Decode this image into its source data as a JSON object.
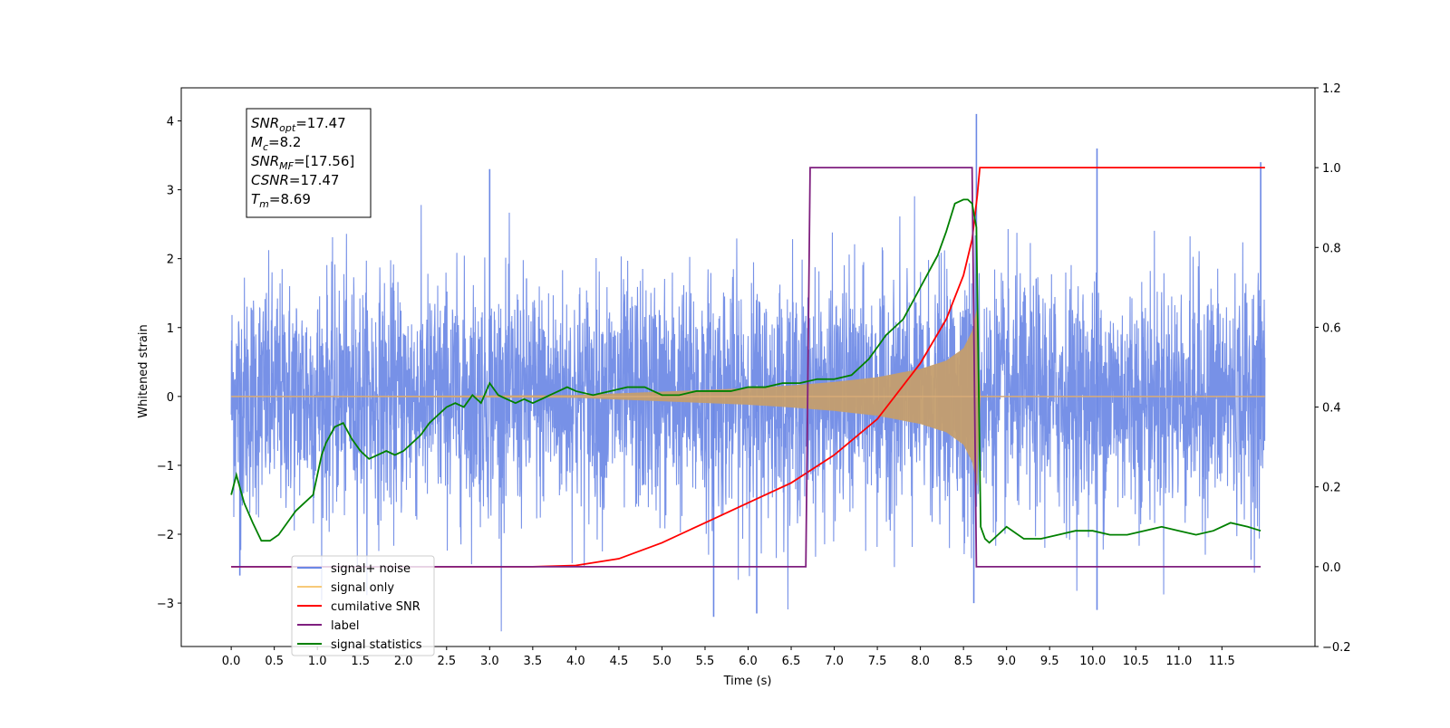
{
  "chart_data": {
    "type": "line",
    "title": "",
    "xlabel": "Time (s)",
    "ylabel_left": "Whitened strain",
    "ylabel_right": "",
    "xlim": [
      -0.58,
      12.58
    ],
    "ylim_left": [
      -3.63,
      4.48
    ],
    "ylim_right": [
      -0.2,
      1.2
    ],
    "x_ticks": [
      0.0,
      0.5,
      1.0,
      1.5,
      2.0,
      2.5,
      3.0,
      3.5,
      4.0,
      4.5,
      5.0,
      5.5,
      6.0,
      6.5,
      7.0,
      7.5,
      8.0,
      8.5,
      9.0,
      9.5,
      10.0,
      10.5,
      11.0,
      11.5
    ],
    "x_tick_labels": [
      "0.0",
      "0.5",
      "1.0",
      "1.5",
      "2.0",
      "2.5",
      "3.0",
      "3.5",
      "4.0",
      "4.5",
      "5.0",
      "5.5",
      "6.0",
      "6.5",
      "7.0",
      "7.5",
      "8.0",
      "8.5",
      "9.0",
      "9.5",
      "10.0",
      "10.5",
      "11.0",
      "11.5"
    ],
    "y_left_ticks": [
      -3,
      -2,
      -1,
      0,
      1,
      2,
      3,
      4
    ],
    "y_left_tick_labels": [
      "−3",
      "−2",
      "−1",
      "0",
      "1",
      "2",
      "3",
      "4"
    ],
    "y_right_ticks": [
      -0.2,
      0.0,
      0.2,
      0.4,
      0.6,
      0.8,
      1.0,
      1.2
    ],
    "y_right_tick_labels": [
      "−0.2",
      "0.0",
      "0.2",
      "0.4",
      "0.6",
      "0.8",
      "1.0",
      "1.2"
    ],
    "grid": false,
    "legend_position": "lower-left",
    "series": [
      {
        "name": "signal+ noise",
        "axis": "left",
        "color": "#6b88e5",
        "description_type": "noise",
        "t_start": 0.0,
        "t_end": 12.0,
        "std": 0.85,
        "peaks": [
          [
            0.1,
            -2.6
          ],
          [
            3.0,
            3.3
          ],
          [
            5.6,
            -3.2
          ],
          [
            6.1,
            -3.15
          ],
          [
            8.65,
            4.1
          ],
          [
            8.62,
            -3.0
          ],
          [
            10.05,
            3.6
          ],
          [
            10.05,
            -3.1
          ],
          [
            11.95,
            3.4
          ]
        ]
      },
      {
        "name": "signal only",
        "axis": "left",
        "color": "#c49e6e",
        "description_type": "chirp",
        "t_start": 0.0,
        "t_end": 12.0,
        "t_merge": 8.66,
        "envelope": [
          [
            0.0,
            0.0
          ],
          [
            4.0,
            0.02
          ],
          [
            5.0,
            0.07
          ],
          [
            6.0,
            0.12
          ],
          [
            6.5,
            0.16
          ],
          [
            7.0,
            0.21
          ],
          [
            7.5,
            0.28
          ],
          [
            8.0,
            0.4
          ],
          [
            8.3,
            0.52
          ],
          [
            8.5,
            0.7
          ],
          [
            8.6,
            0.95
          ],
          [
            8.66,
            1.3
          ],
          [
            8.69,
            0.0
          ],
          [
            12.0,
            0.0
          ]
        ]
      },
      {
        "name": "cumilative SNR",
        "axis": "right",
        "color": "#ff0000",
        "x": [
          0.0,
          3.5,
          4.0,
          4.5,
          5.0,
          5.5,
          6.0,
          6.5,
          7.0,
          7.5,
          8.0,
          8.3,
          8.5,
          8.6,
          8.66,
          8.69,
          12.0
        ],
        "y": [
          0.0,
          0.0,
          0.003,
          0.02,
          0.06,
          0.11,
          0.16,
          0.21,
          0.28,
          0.37,
          0.51,
          0.62,
          0.73,
          0.82,
          0.93,
          1.0,
          1.0
        ]
      },
      {
        "name": "label",
        "axis": "right",
        "color": "#7f1f7f",
        "x": [
          0.0,
          6.67,
          6.72,
          8.6,
          8.65,
          11.95
        ],
        "y": [
          0.0,
          0.0,
          1.0,
          1.0,
          0.0,
          0.0
        ]
      },
      {
        "name": "signal statistics",
        "axis": "right",
        "color": "#008000",
        "x": [
          0.0,
          0.06,
          0.15,
          0.25,
          0.35,
          0.45,
          0.55,
          0.65,
          0.75,
          0.85,
          0.95,
          1.05,
          1.1,
          1.2,
          1.3,
          1.4,
          1.5,
          1.6,
          1.7,
          1.8,
          1.9,
          2.0,
          2.1,
          2.2,
          2.3,
          2.4,
          2.5,
          2.6,
          2.7,
          2.8,
          2.9,
          3.0,
          3.1,
          3.2,
          3.3,
          3.4,
          3.5,
          3.6,
          3.7,
          3.8,
          3.9,
          4.0,
          4.2,
          4.4,
          4.6,
          4.8,
          5.0,
          5.2,
          5.4,
          5.6,
          5.8,
          6.0,
          6.2,
          6.4,
          6.6,
          6.8,
          7.0,
          7.2,
          7.4,
          7.6,
          7.8,
          7.9,
          8.0,
          8.1,
          8.2,
          8.3,
          8.4,
          8.5,
          8.55,
          8.6,
          8.65,
          8.7,
          8.75,
          8.8,
          8.9,
          9.0,
          9.2,
          9.4,
          9.6,
          9.8,
          10.0,
          10.2,
          10.4,
          10.6,
          10.8,
          11.0,
          11.2,
          11.4,
          11.6,
          11.8,
          11.95
        ],
        "y": [
          0.18,
          0.23,
          0.16,
          0.11,
          0.065,
          0.065,
          0.08,
          0.11,
          0.14,
          0.16,
          0.18,
          0.28,
          0.31,
          0.35,
          0.36,
          0.32,
          0.29,
          0.27,
          0.28,
          0.29,
          0.28,
          0.29,
          0.31,
          0.33,
          0.36,
          0.38,
          0.4,
          0.41,
          0.4,
          0.43,
          0.41,
          0.46,
          0.43,
          0.42,
          0.41,
          0.42,
          0.41,
          0.42,
          0.43,
          0.44,
          0.45,
          0.44,
          0.43,
          0.44,
          0.45,
          0.45,
          0.43,
          0.43,
          0.44,
          0.44,
          0.44,
          0.45,
          0.45,
          0.46,
          0.46,
          0.47,
          0.47,
          0.48,
          0.52,
          0.58,
          0.62,
          0.66,
          0.7,
          0.74,
          0.78,
          0.84,
          0.91,
          0.92,
          0.92,
          0.91,
          0.85,
          0.1,
          0.07,
          0.06,
          0.08,
          0.1,
          0.07,
          0.07,
          0.08,
          0.09,
          0.09,
          0.08,
          0.08,
          0.09,
          0.1,
          0.09,
          0.08,
          0.09,
          0.11,
          0.1,
          0.09
        ]
      }
    ],
    "legend_entries": [
      {
        "label": "signal+ noise",
        "color": "#6b88e5"
      },
      {
        "label": "signal only",
        "color": "#f7c978"
      },
      {
        "label": "cumilative SNR",
        "color": "#ff0000"
      },
      {
        "label": "label",
        "color": "#7f1f7f"
      },
      {
        "label": "signal statistics",
        "color": "#008000"
      }
    ],
    "annotation": {
      "lines": [
        {
          "base": "SNR",
          "sub": "opt",
          "value": "=17.47"
        },
        {
          "base": "M",
          "sub": "c",
          "value": "=8.2"
        },
        {
          "base": "SNR",
          "sub": "MF",
          "value": "=[17.56]"
        },
        {
          "base": "CSNR",
          "sub": "",
          "value": "=17.47"
        },
        {
          "base": "T",
          "sub": "m",
          "value": "=8.69"
        }
      ]
    }
  }
}
